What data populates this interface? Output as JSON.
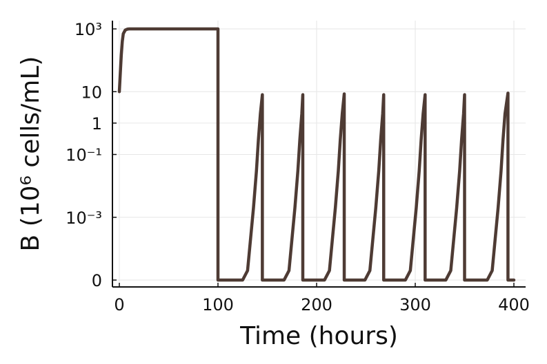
{
  "chart_data": {
    "type": "line",
    "title": "",
    "xlabel": "Time (hours)",
    "ylabel": "B (10⁶ cells/mL)",
    "xlim": [
      0,
      400
    ],
    "y_scale": "symlog",
    "grid": true,
    "legend": "none",
    "x_ticks": [
      {
        "value": 0,
        "label": "0"
      },
      {
        "value": 100,
        "label": "100"
      },
      {
        "value": 200,
        "label": "200"
      },
      {
        "value": 300,
        "label": "300"
      },
      {
        "value": 400,
        "label": "400"
      }
    ],
    "y_ticks": [
      {
        "value": 0,
        "label": "0"
      },
      {
        "value": 0.001,
        "label": "10⁻³"
      },
      {
        "value": 0.1,
        "label": "10⁻¹"
      },
      {
        "value": 1,
        "label": "1"
      },
      {
        "value": 10,
        "label": "10"
      },
      {
        "value": 1000,
        "label": "10³"
      }
    ],
    "series": [
      {
        "color": "#4e3b34",
        "points": [
          [
            0,
            10
          ],
          [
            1,
            40
          ],
          [
            2,
            150
          ],
          [
            3,
            400
          ],
          [
            4,
            700
          ],
          [
            6,
            920
          ],
          [
            8,
            980
          ],
          [
            10,
            1000
          ],
          [
            100,
            1000
          ],
          [
            100,
            0
          ],
          [
            125,
            0
          ],
          [
            130,
            2e-05
          ],
          [
            133,
            0.0002
          ],
          [
            136,
            0.002
          ],
          [
            139,
            0.03
          ],
          [
            141,
            0.3
          ],
          [
            143,
            2
          ],
          [
            145,
            8
          ],
          [
            145,
            0
          ],
          [
            167,
            0
          ],
          [
            172,
            2e-05
          ],
          [
            175,
            0.0002
          ],
          [
            178,
            0.002
          ],
          [
            181,
            0.03
          ],
          [
            183,
            0.3
          ],
          [
            185,
            2
          ],
          [
            186,
            8
          ],
          [
            186,
            0
          ],
          [
            208,
            0
          ],
          [
            213,
            2e-05
          ],
          [
            216,
            0.0002
          ],
          [
            219,
            0.002
          ],
          [
            222,
            0.03
          ],
          [
            224,
            0.3
          ],
          [
            226,
            2
          ],
          [
            228,
            8.5
          ],
          [
            228,
            0
          ],
          [
            249,
            0
          ],
          [
            254,
            2e-05
          ],
          [
            257,
            0.0002
          ],
          [
            260,
            0.002
          ],
          [
            263,
            0.03
          ],
          [
            265,
            0.3
          ],
          [
            267,
            2
          ],
          [
            268,
            8
          ],
          [
            268,
            0
          ],
          [
            290,
            0
          ],
          [
            295,
            2e-05
          ],
          [
            298,
            0.0002
          ],
          [
            301,
            0.002
          ],
          [
            304,
            0.03
          ],
          [
            306,
            0.3
          ],
          [
            308,
            2
          ],
          [
            310,
            8
          ],
          [
            310,
            0
          ],
          [
            331,
            0
          ],
          [
            336,
            2e-05
          ],
          [
            339,
            0.0002
          ],
          [
            342,
            0.002
          ],
          [
            345,
            0.03
          ],
          [
            347,
            0.3
          ],
          [
            349,
            2
          ],
          [
            350,
            8
          ],
          [
            350,
            0
          ],
          [
            373,
            0
          ],
          [
            378,
            2e-05
          ],
          [
            381,
            0.0002
          ],
          [
            384,
            0.002
          ],
          [
            387,
            0.03
          ],
          [
            389,
            0.3
          ],
          [
            391,
            2
          ],
          [
            394,
            9
          ],
          [
            394,
            0
          ],
          [
            400,
            0
          ]
        ]
      }
    ]
  }
}
